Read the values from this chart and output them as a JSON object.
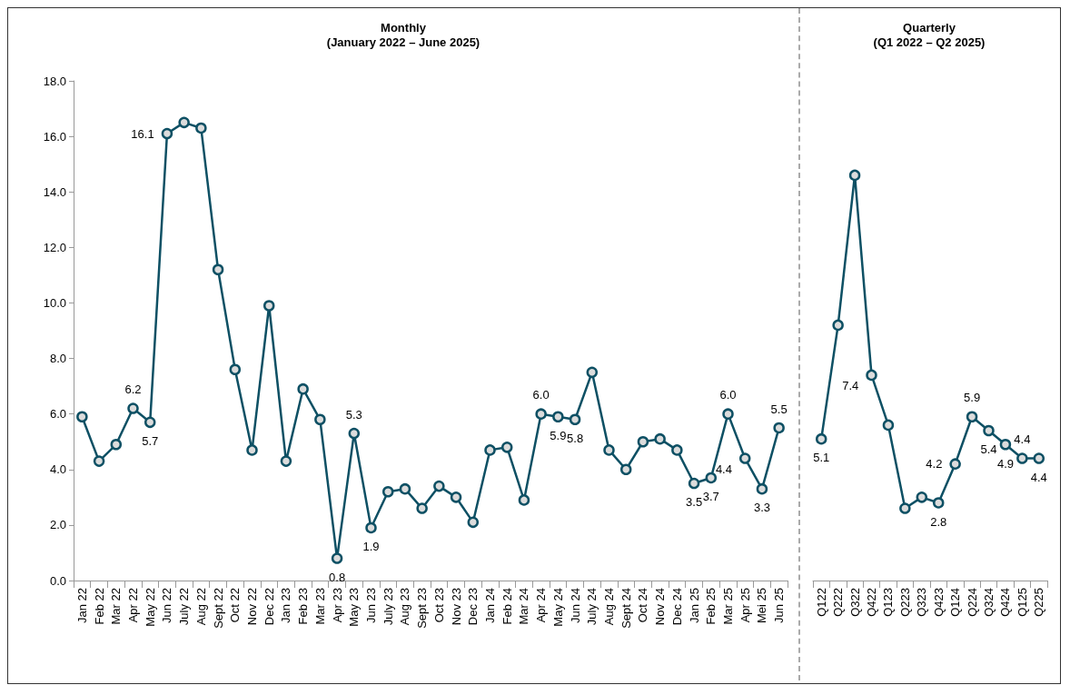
{
  "chart_data": [
    {
      "type": "line",
      "title": "Monthly\n(January 2022 – June 2025)",
      "categories": [
        "Jan 22",
        "Feb 22",
        "Mar 22",
        "Apr 22",
        "May 22",
        "Jun 22",
        "July 22",
        "Aug 22",
        "Sept 22",
        "Oct 22",
        "Nov 22",
        "Dec 22",
        "Jan 23",
        "Feb 23",
        "Mar 23",
        "Apr 23",
        "May 23",
        "Jun 23",
        "July 23",
        "Aug 23",
        "Sept 23",
        "Oct 23",
        "Nov 23",
        "Dec 23",
        "Jan 24",
        "Feb 24",
        "Mar 24",
        "Apr 24",
        "May 24",
        "Jun 24",
        "July 24",
        "Aug 24",
        "Sept 24",
        "Oct 24",
        "Nov 24",
        "Dec 24",
        "Jan 25",
        "Feb 25",
        "Mar 25",
        "Apr 25",
        "Mei 25",
        "Jun 25"
      ],
      "series": [
        {
          "color": "#0e5064",
          "values": [
            5.9,
            4.3,
            4.9,
            6.2,
            5.7,
            16.1,
            16.5,
            16.3,
            11.2,
            7.6,
            4.7,
            9.9,
            4.3,
            6.9,
            5.8,
            0.8,
            5.3,
            1.9,
            3.2,
            3.3,
            2.6,
            3.4,
            3.0,
            2.1,
            4.7,
            4.8,
            2.9,
            6.0,
            5.9,
            5.8,
            7.5,
            4.7,
            4.0,
            5.0,
            5.1,
            4.7,
            3.5,
            3.7,
            6.0,
            4.4,
            3.3,
            5.5
          ],
          "value_labels": [
            null,
            null,
            null,
            "6.2",
            "5.7",
            "16.1",
            null,
            null,
            null,
            null,
            null,
            null,
            null,
            null,
            null,
            "0.8",
            "5.3",
            "1.9",
            null,
            null,
            null,
            null,
            null,
            null,
            null,
            null,
            null,
            "6.0",
            "5.9",
            "5.8",
            null,
            null,
            null,
            null,
            null,
            null,
            "3.5",
            "3.7",
            "6.0",
            "4.4",
            "3.3",
            "5.5"
          ]
        }
      ],
      "ylim": [
        0,
        18
      ],
      "yticks": [
        {
          "value": 0,
          "label": "0.0"
        },
        {
          "value": 2,
          "label": "2.0"
        },
        {
          "value": 4,
          "label": "4.0"
        },
        {
          "value": 6,
          "label": "6.0"
        },
        {
          "value": 8,
          "label": "8.0"
        },
        {
          "value": 10,
          "label": "10.0"
        },
        {
          "value": 12,
          "label": "12.0"
        },
        {
          "value": 14,
          "label": "14.0"
        },
        {
          "value": 16,
          "label": "16.0"
        },
        {
          "value": 18,
          "label": "18.0"
        }
      ],
      "marker": "circle",
      "grid": false
    },
    {
      "type": "line",
      "title": "Quarterly\n(Q1 2022 – Q2 2025)",
      "categories": [
        "Q122",
        "Q222",
        "Q322",
        "Q422",
        "Q123",
        "Q223",
        "Q323",
        "Q423",
        "Q124",
        "Q224",
        "Q324",
        "Q424",
        "Q125",
        "Q225"
      ],
      "series": [
        {
          "color": "#0e5064",
          "values": [
            5.1,
            9.2,
            14.6,
            7.4,
            5.6,
            2.6,
            3.0,
            2.8,
            4.2,
            5.9,
            5.4,
            4.9,
            4.4,
            4.4
          ],
          "value_labels": [
            "5.1",
            null,
            null,
            "7.4",
            null,
            null,
            null,
            "2.8",
            "4.2",
            "5.9",
            "5.4",
            "4.9",
            "4.4",
            "4.4"
          ]
        }
      ],
      "ylim": [
        0,
        18
      ],
      "tick_labels": "x",
      "marker": "circle",
      "grid": false
    }
  ]
}
